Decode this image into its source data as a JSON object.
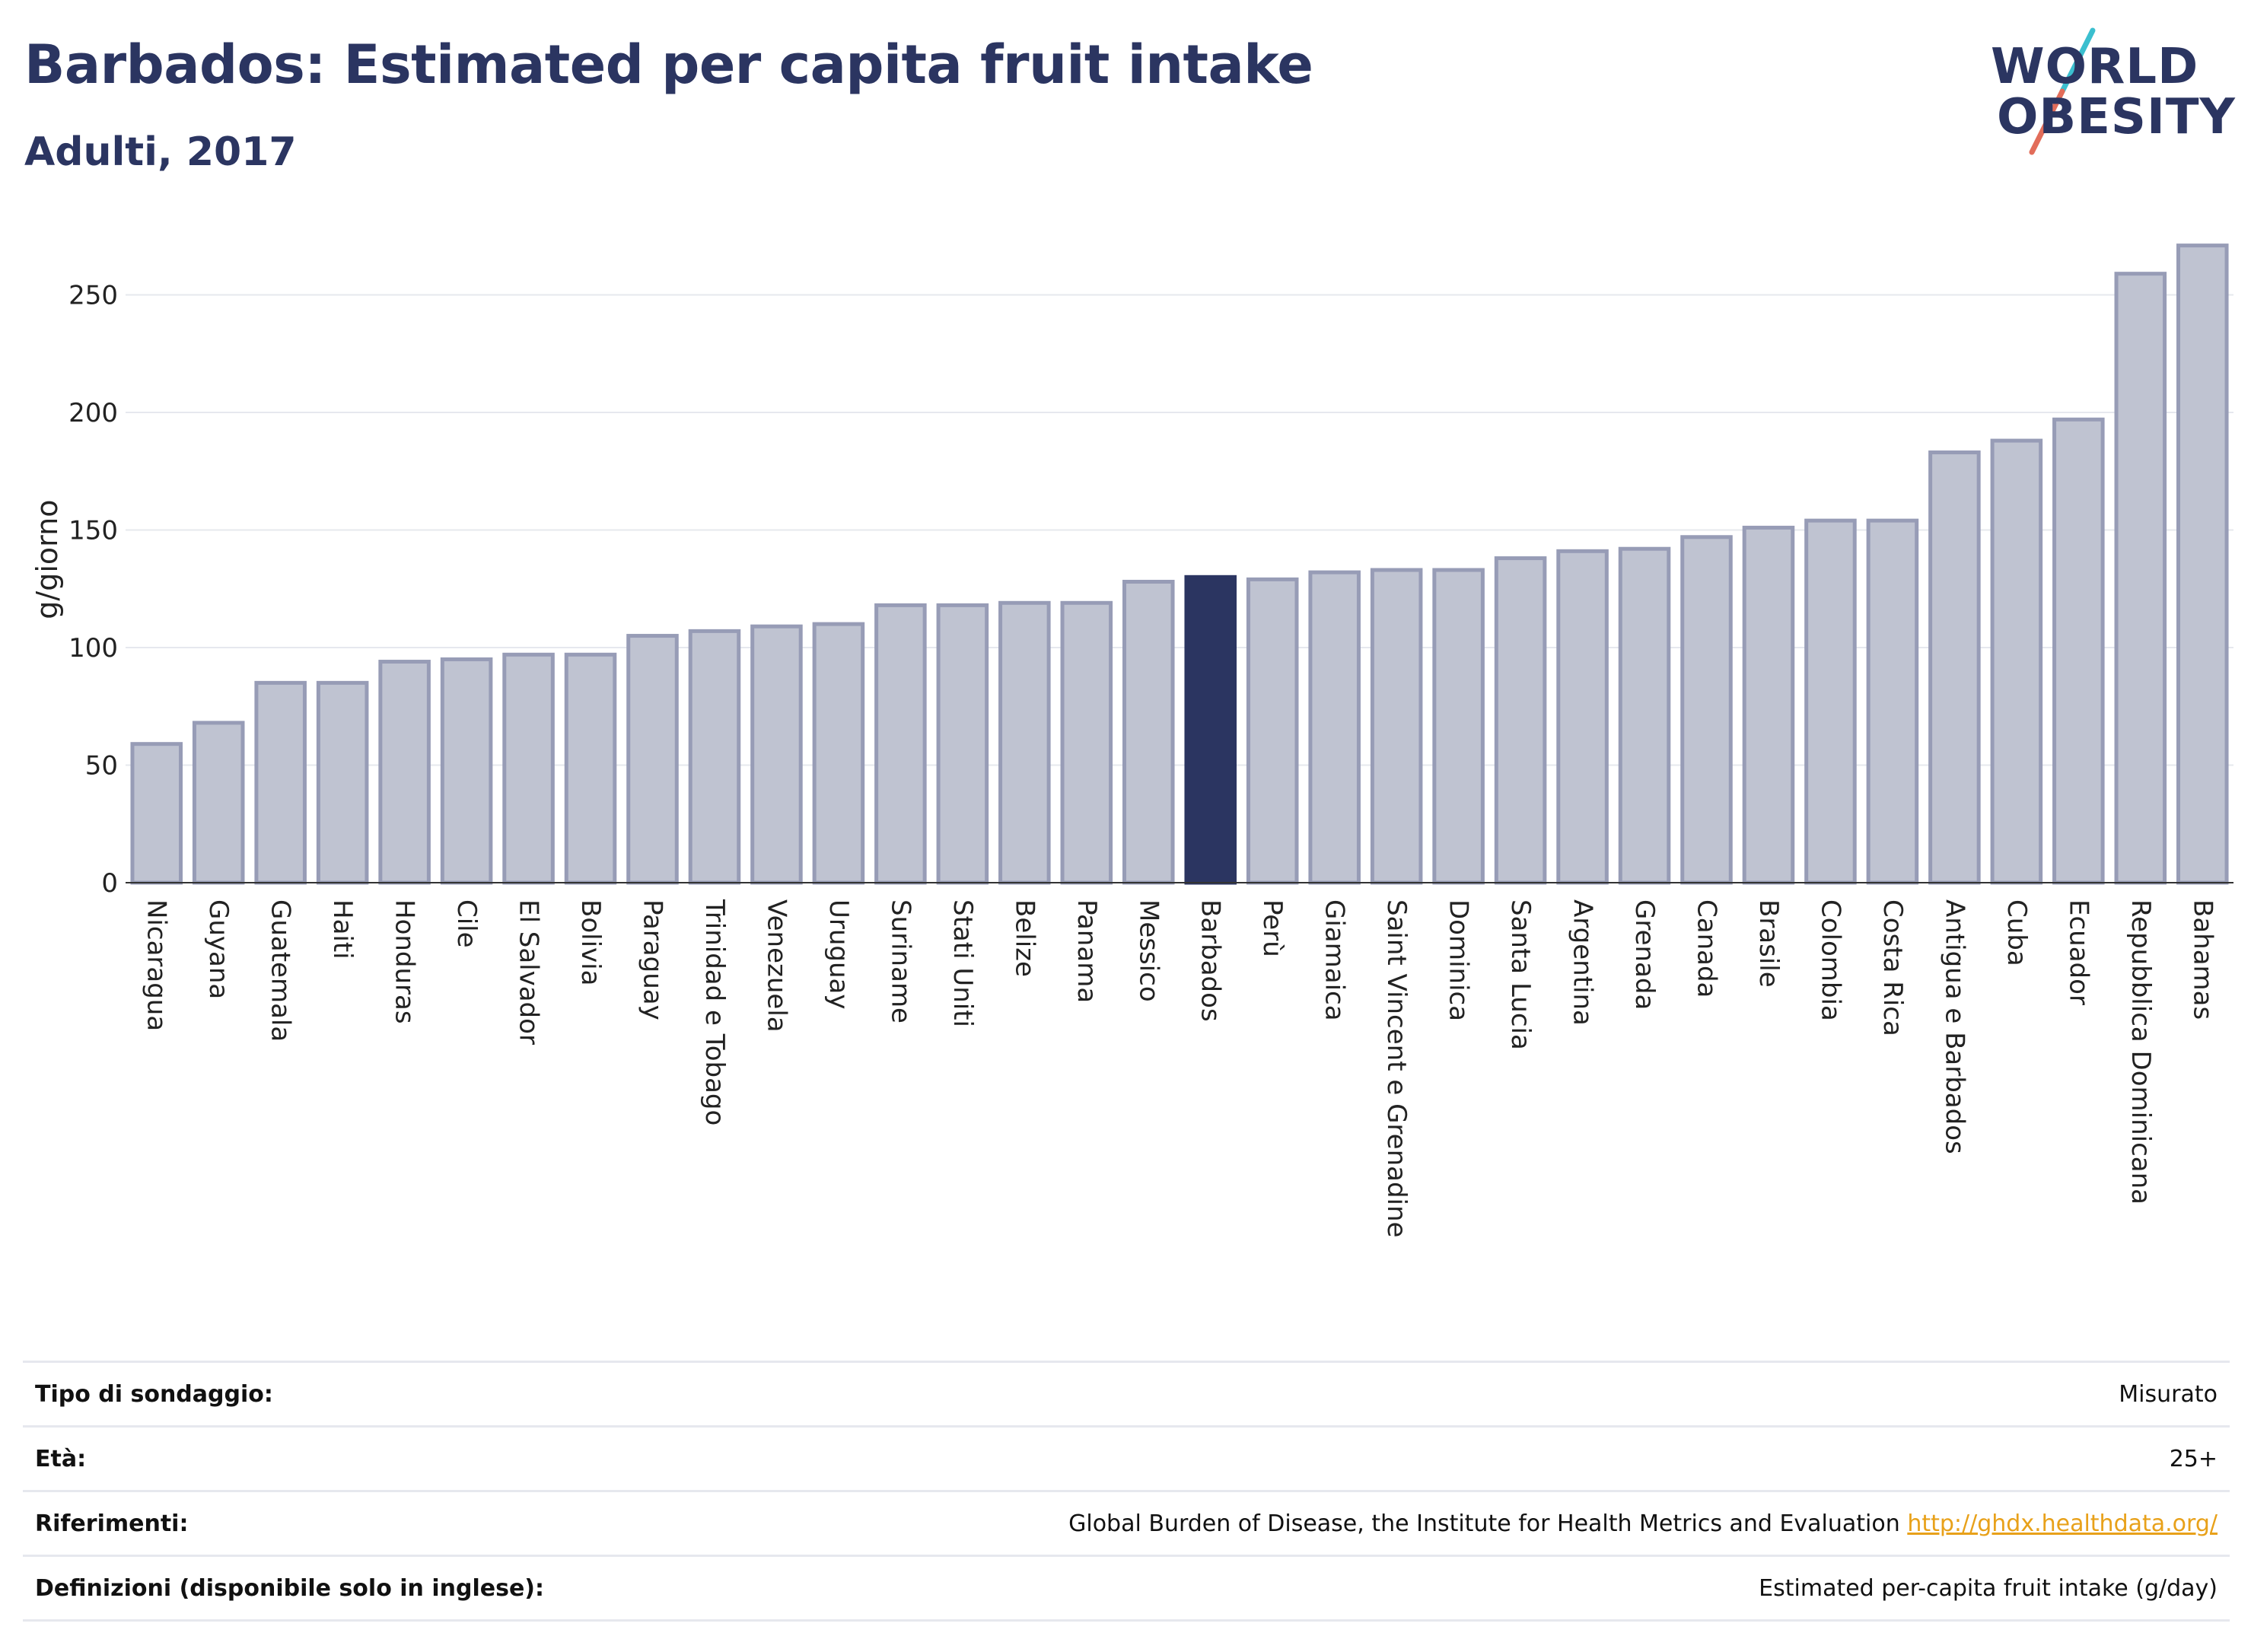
{
  "header": {
    "title": "Barbados: Estimated per capita fruit intake",
    "subtitle": "Adulti, 2017"
  },
  "logo": {
    "line1": "WORLD",
    "line2": "OBESITY"
  },
  "colors": {
    "highlight": "#2b3561",
    "bar_fill": "#bfc3d1",
    "bar_stroke": "#979cb6",
    "accent_teal": "#3bbfcf",
    "accent_coral": "#e26d5a"
  },
  "chart_data": {
    "type": "bar",
    "ylabel": "g/giorno",
    "ylim": [
      0,
      275
    ],
    "yticks": [
      0,
      50,
      100,
      150,
      200,
      250
    ],
    "grid": true,
    "highlight": "Barbados",
    "categories": [
      "Nicaragua",
      "Guyana",
      "Guatemala",
      "Haiti",
      "Honduras",
      "Cile",
      "El Salvador",
      "Bolivia",
      "Paraguay",
      "Trinidad e Tobago",
      "Venezuela",
      "Uruguay",
      "Suriname",
      "Stati Uniti",
      "Belize",
      "Panama",
      "Messico",
      "Barbados",
      "Perù",
      "Giamaica",
      "Saint Vincent e Grenadine",
      "Dominica",
      "Santa Lucia",
      "Argentina",
      "Grenada",
      "Canada",
      "Brasile",
      "Colombia",
      "Costa Rica",
      "Antigua e Barbados",
      "Cuba",
      "Ecuador",
      "Repubblica Dominicana",
      "Bahamas"
    ],
    "values": [
      59,
      68,
      85,
      85,
      94,
      95,
      97,
      97,
      105,
      107,
      109,
      110,
      118,
      118,
      119,
      119,
      128,
      130,
      129,
      132,
      133,
      133,
      138,
      141,
      142,
      147,
      151,
      154,
      154,
      183,
      188,
      197,
      259,
      271
    ]
  },
  "info": {
    "rows": [
      {
        "label": "Tipo di sondaggio:",
        "value": "Misurato"
      },
      {
        "label": "Età:",
        "value": "25+"
      },
      {
        "label": "Riferimenti:",
        "value": "Global Burden of Disease, the Institute for Health Metrics and Evaluation",
        "link": "http://ghdx.healthdata.org/"
      },
      {
        "label": "Definizioni (disponibile solo in inglese):",
        "value": "Estimated per-capita fruit intake (g/day)"
      }
    ]
  }
}
